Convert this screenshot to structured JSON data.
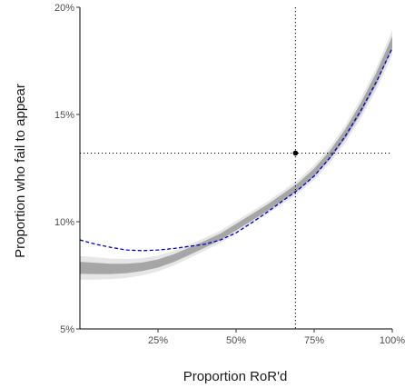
{
  "chart_data": {
    "type": "line",
    "xlabel": "Proportion RoR'd",
    "ylabel": "Proportion who fail to appear",
    "xlim": [
      0,
      1
    ],
    "ylim": [
      0.05,
      0.2
    ],
    "x_ticks": [
      0.25,
      0.5,
      0.75,
      1.0
    ],
    "x_tick_labels": [
      "25%",
      "50%",
      "75%",
      "100%"
    ],
    "y_ticks": [
      0.05,
      0.1,
      0.15,
      0.2
    ],
    "y_tick_labels": [
      "5%",
      "10%",
      "15%",
      "20%"
    ],
    "grid": false,
    "legend": "none",
    "x": [
      0.0,
      0.05,
      0.1,
      0.15,
      0.2,
      0.25,
      0.3,
      0.35,
      0.4,
      0.45,
      0.5,
      0.55,
      0.6,
      0.65,
      0.7,
      0.75,
      0.8,
      0.85,
      0.9,
      0.95,
      1.0
    ],
    "series": [
      {
        "style": "band",
        "color": "#a6a6a6",
        "outer_color": "#e6e6e6",
        "values": [
          0.0785,
          0.0782,
          0.078,
          0.0782,
          0.079,
          0.0805,
          0.083,
          0.0862,
          0.0895,
          0.093,
          0.0975,
          0.102,
          0.1065,
          0.1115,
          0.1165,
          0.123,
          0.131,
          0.141,
          0.153,
          0.167,
          0.1835
        ],
        "inner_halfwidth": [
          0.0028,
          0.0026,
          0.0024,
          0.0022,
          0.002,
          0.0019,
          0.0018,
          0.0017,
          0.0016,
          0.0015,
          0.0015,
          0.0015,
          0.0015,
          0.0016,
          0.0017,
          0.0018,
          0.002,
          0.0022,
          0.0025,
          0.0028,
          0.003
        ],
        "outer_halfwidth": [
          0.0055,
          0.0052,
          0.0048,
          0.0044,
          0.004,
          0.0037,
          0.0034,
          0.0032,
          0.003,
          0.0029,
          0.0028,
          0.0028,
          0.0029,
          0.003,
          0.0032,
          0.0034,
          0.0037,
          0.0041,
          0.0046,
          0.0052,
          0.0058
        ]
      },
      {
        "style": "dashed",
        "color": "#0000cc",
        "values": [
          0.0915,
          0.0895,
          0.088,
          0.0868,
          0.0865,
          0.0868,
          0.0875,
          0.0885,
          0.0895,
          0.0915,
          0.0948,
          0.0995,
          0.1045,
          0.1098,
          0.115,
          0.1213,
          0.1298,
          0.14,
          0.152,
          0.1655,
          0.181
        ]
      }
    ],
    "reference_lines": {
      "x": 0.69,
      "y": 0.132,
      "style": "dotted"
    },
    "point": {
      "x": 0.69,
      "y": 0.132
    }
  }
}
